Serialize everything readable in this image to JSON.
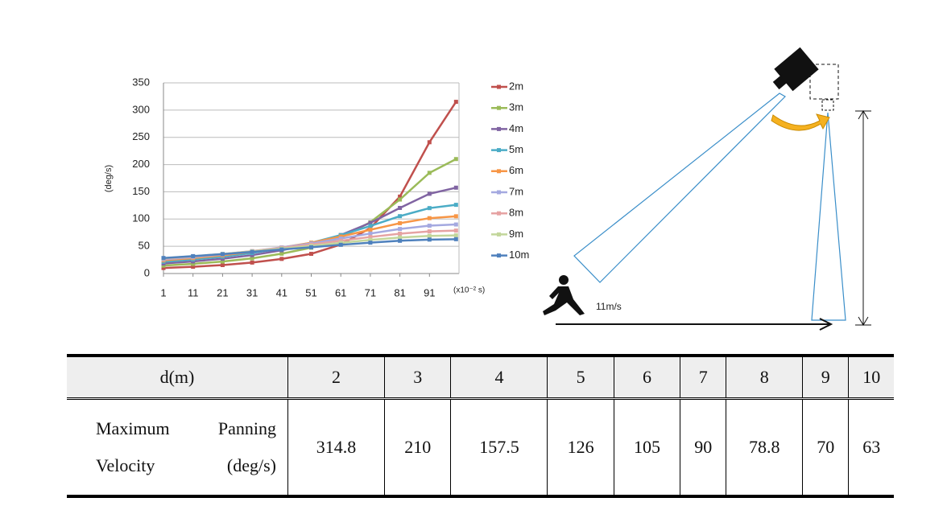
{
  "chart_data": {
    "type": "line",
    "ylabel": "(deg/s)",
    "xlabel": "(x10⁻² s)",
    "x": [
      1,
      11,
      21,
      31,
      41,
      51,
      61,
      71,
      81,
      91,
      100
    ],
    "xlim": [
      1,
      101
    ],
    "xticks": [
      1,
      11,
      21,
      31,
      41,
      51,
      61,
      71,
      81,
      91
    ],
    "ylim": [
      0,
      350
    ],
    "yticks": [
      0,
      50,
      100,
      150,
      200,
      250,
      300,
      350
    ],
    "grid": true,
    "series": [
      {
        "name": "2m",
        "color": "#c0504d",
        "values": [
          10.1,
          12.4,
          15.5,
          20.1,
          26.8,
          36.1,
          53.2,
          83.5,
          141.2,
          241,
          315.2
        ]
      },
      {
        "name": "3m",
        "color": "#9bbb59",
        "values": [
          14.5,
          17.7,
          22.0,
          27.9,
          36.4,
          47.4,
          65.9,
          94.1,
          135.8,
          184.8,
          210.1
        ]
      },
      {
        "name": "4m",
        "color": "#8064a2",
        "values": [
          18.4,
          22.2,
          27.1,
          33.7,
          42.7,
          53.8,
          70.6,
          93.0,
          120.4,
          146.3,
          157.6
        ]
      },
      {
        "name": "5m",
        "color": "#4bacc6",
        "values": [
          21.6,
          25.7,
          30.9,
          37.6,
          46.3,
          56.4,
          70.5,
          87.3,
          105.3,
          120.1,
          126.1
        ]
      },
      {
        "name": "6m",
        "color": "#f79646",
        "values": [
          24.1,
          28.3,
          33.4,
          39.9,
          47.9,
          56.5,
          67.9,
          80.3,
          92.4,
          101.6,
          105.1
        ]
      },
      {
        "name": "7m",
        "color": "#a4a9e0",
        "values": [
          26.0,
          30.1,
          35.0,
          40.9,
          48.0,
          55.2,
          64.2,
          73.4,
          81.8,
          87.8,
          90.0
        ]
      },
      {
        "name": "8m",
        "color": "#e6a3a3",
        "values": [
          27.3,
          31.2,
          35.7,
          41.1,
          47.1,
          53.1,
          60.2,
          67.1,
          73.1,
          77.3,
          78.8
        ]
      },
      {
        "name": "9m",
        "color": "#c3d69b",
        "values": [
          28.1,
          31.7,
          35.9,
          40.6,
          45.8,
          50.7,
          56.3,
          61.6,
          66.0,
          69.0,
          70.0
        ]
      },
      {
        "name": "10m",
        "color": "#4f81bd",
        "values": [
          28.5,
          31.9,
          35.6,
          39.7,
          44.1,
          48.2,
          52.7,
          56.7,
          60.1,
          62.3,
          63.0
        ]
      }
    ]
  },
  "diagram": {
    "speed_label": "11m/s"
  },
  "table": {
    "header": [
      "d(m)",
      "2",
      "3",
      "4",
      "5",
      "6",
      "7",
      "8",
      "9",
      "10"
    ],
    "rows": [
      [
        "Maximum Panning Velocity (deg/s)",
        "314.8",
        "210",
        "157.5",
        "126",
        "105",
        "90",
        "78.8",
        "70",
        "63"
      ]
    ]
  }
}
